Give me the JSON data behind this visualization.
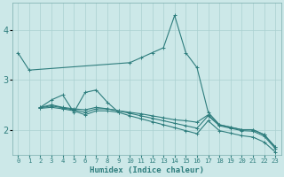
{
  "xlabel": "Humidex (Indice chaleur)",
  "x_values": [
    0,
    1,
    2,
    3,
    4,
    5,
    6,
    7,
    8,
    9,
    10,
    11,
    12,
    13,
    14,
    15,
    16,
    17,
    18,
    19,
    20,
    21,
    22,
    23
  ],
  "line_peak": [
    3.55,
    3.2,
    null,
    null,
    null,
    null,
    null,
    null,
    null,
    null,
    3.35,
    3.45,
    3.55,
    3.65,
    4.3,
    3.55,
    3.25,
    2.35,
    2.1,
    2.05,
    2.0,
    2.0,
    1.9,
    1.65
  ],
  "line_upper_flat": [
    3.55,
    3.2,
    null,
    null,
    null,
    null,
    null,
    null,
    null,
    null,
    3.35,
    3.45,
    3.55,
    3.65,
    4.3,
    3.55,
    3.25,
    null,
    null,
    null,
    null,
    null,
    null,
    null
  ],
  "line_jagged": [
    null,
    null,
    2.45,
    2.6,
    2.7,
    2.35,
    2.75,
    2.8,
    2.55,
    2.35,
    null,
    null,
    null,
    null,
    null,
    null,
    null,
    null,
    null,
    null,
    null,
    null,
    null,
    null
  ],
  "line_mid": [
    null,
    null,
    2.45,
    2.5,
    2.45,
    2.42,
    2.4,
    2.45,
    2.42,
    2.38,
    2.35,
    2.32,
    2.28,
    2.24,
    2.2,
    2.18,
    2.15,
    2.3,
    2.1,
    2.05,
    2.0,
    2.0,
    1.9,
    1.65
  ],
  "line_low": [
    null,
    null,
    2.44,
    2.48,
    2.44,
    2.4,
    2.35,
    2.42,
    2.42,
    2.38,
    2.33,
    2.28,
    2.23,
    2.18,
    2.13,
    2.08,
    2.03,
    2.28,
    2.08,
    2.03,
    1.98,
    1.97,
    1.87,
    1.62
  ],
  "line_bottom": [
    null,
    null,
    2.43,
    2.45,
    2.42,
    2.38,
    2.3,
    2.38,
    2.38,
    2.35,
    2.28,
    2.22,
    2.16,
    2.1,
    2.04,
    1.98,
    1.92,
    2.18,
    1.98,
    1.93,
    1.88,
    1.85,
    1.75,
    1.55
  ],
  "line_color": "#2e7d7d",
  "bg_color": "#cce8e8",
  "grid_color_major": "#aad0d0",
  "grid_color_minor": "#bbdddd",
  "ylim": [
    1.5,
    4.55
  ],
  "yticks": [
    2,
    3,
    4
  ],
  "xlim": [
    -0.5,
    23.5
  ]
}
